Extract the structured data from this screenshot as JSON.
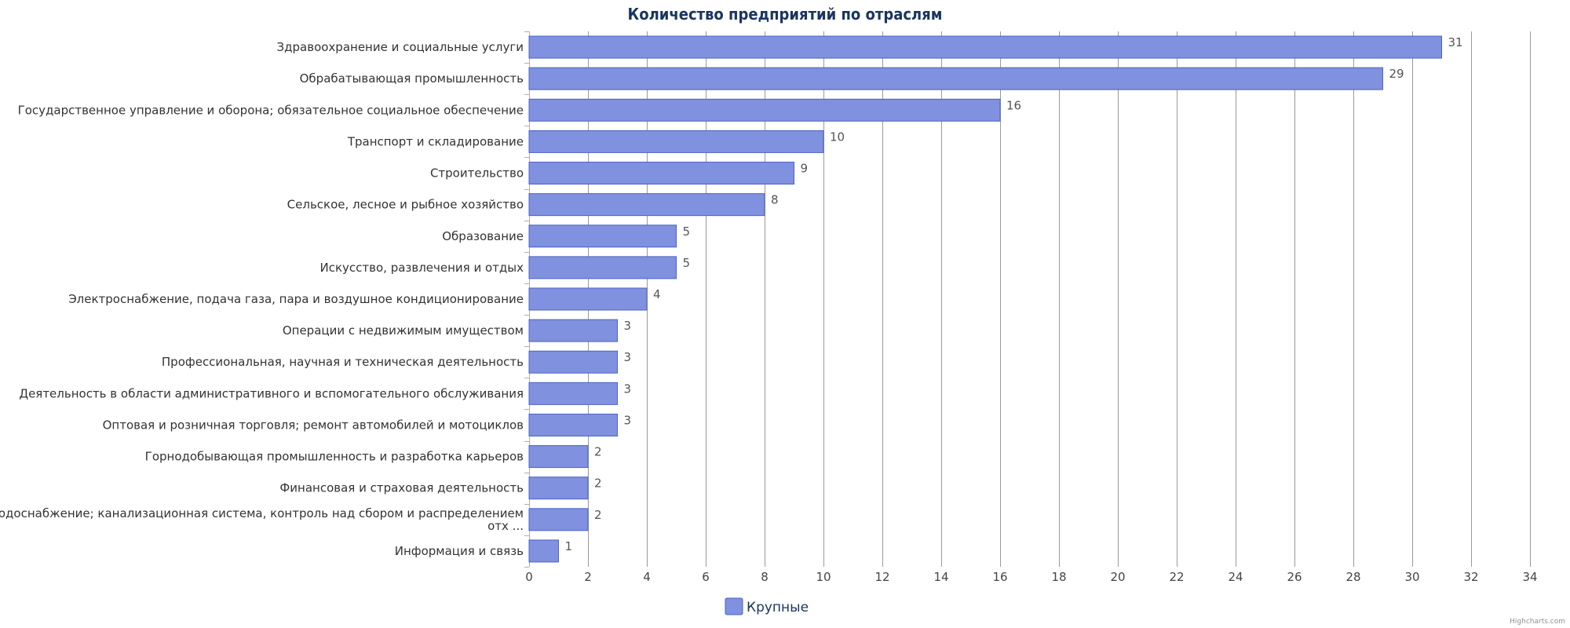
{
  "chart_data": {
    "type": "bar",
    "orientation": "horizontal",
    "title": "Количество предприятий по отраслям",
    "categories": [
      "Здравоохранение и социальные услуги",
      "Обрабатывающая промышленность",
      "Государственное управление и оборона; обязательное социальное обеспечение",
      "Транспорт и складирование",
      "Строительство",
      "Сельское, лесное и рыбное хозяйство",
      "Образование",
      "Искусство, развлечения и отдых",
      "Электроснабжение, подача газа, пара и воздушное кондиционирование",
      "Операции с недвижимым имуществом",
      "Профессиональная, научная и техническая деятельность",
      "Деятельность в области административного и вспомогательного обслуживания",
      "Оптовая и розничная торговля; ремонт автомобилей и мотоциклов",
      "Горнодобывающая промышленность и разработка карьеров",
      "Финансовая и страховая деятельность",
      [
        "Водоснабжение; канализационная система, контроль над сбором и распределением",
        "отх ..."
      ],
      "Информация и связь"
    ],
    "series": [
      {
        "name": "Крупные",
        "color": "#7f91df",
        "values": [
          31,
          29,
          16,
          10,
          9,
          8,
          5,
          5,
          4,
          3,
          3,
          3,
          3,
          2,
          2,
          2,
          1
        ]
      }
    ],
    "xlim": [
      0,
      34
    ],
    "xticks": [
      0,
      2,
      4,
      6,
      8,
      10,
      12,
      14,
      16,
      18,
      20,
      22,
      24,
      26,
      28,
      30,
      32,
      34
    ],
    "grid": true,
    "legend_position": "bottom-center",
    "data_labels": true
  },
  "credit": "Highcharts.com"
}
